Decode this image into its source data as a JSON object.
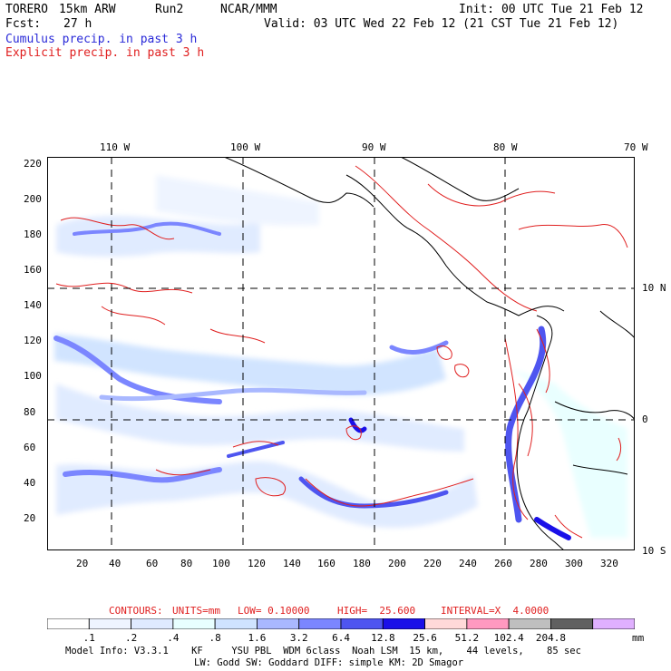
{
  "header": {
    "model": "TORERO",
    "resolution": "15km ARW",
    "run": "Run2",
    "org": "NCAR/MMM",
    "init": "Init: 00 UTC Tue 21 Feb 12",
    "fcst_label": "Fcst:",
    "fcst_value": "27 h",
    "valid": "Valid: 03 UTC Wed 22 Feb 12 (21 CST Tue 21 Feb 12)",
    "line_cumulus": "Cumulus precip. in past 3 h",
    "line_explicit": "Explicit precip. in past 3 h"
  },
  "map": {
    "top_lon_labels": [
      "110 W",
      "100 W",
      "90 W",
      "80 W",
      "70 W"
    ],
    "left_ticks": [
      "220",
      "200",
      "180",
      "160",
      "140",
      "120",
      "100",
      "80",
      "60",
      "40",
      "20"
    ],
    "bottom_ticks": [
      "20",
      "40",
      "60",
      "80",
      "100",
      "120",
      "140",
      "160",
      "180",
      "200",
      "220",
      "240",
      "260",
      "280",
      "300",
      "320"
    ],
    "right_lat_labels": [
      "10 N",
      "0",
      "10 S"
    ]
  },
  "contours_line": {
    "prefix": "CONTOURS:",
    "units": "UNITS=mm",
    "low": "LOW= 0.10000",
    "high": "HIGH=  25.600",
    "interval": "INTERVAL=X  4.0000"
  },
  "legend": {
    "levels": [
      ".1",
      ".2",
      ".4",
      ".8",
      "1.6",
      "3.2",
      "6.4",
      "12.8",
      "25.6",
      "51.2",
      "102.4",
      "204.8"
    ],
    "units": "mm",
    "colors": [
      "#ffffff",
      "#eef4ff",
      "#dfeaff",
      "#e8ffff",
      "#cfe3ff",
      "#a9b8ff",
      "#7b86ff",
      "#4e55f0",
      "#1a10e8",
      "#ffd9d9",
      "#ff99c0",
      "#bfbfbf",
      "#606060",
      "#e0b0ff"
    ]
  },
  "footer": {
    "line1": "Model Info: V3.3.1    KF     YSU PBL  WDM 6class  Noah LSM  15 km,    44 levels,    85 sec",
    "line2": "LW: Godd SW: Goddard DIFF: simple KM: 2D Smagor"
  }
}
